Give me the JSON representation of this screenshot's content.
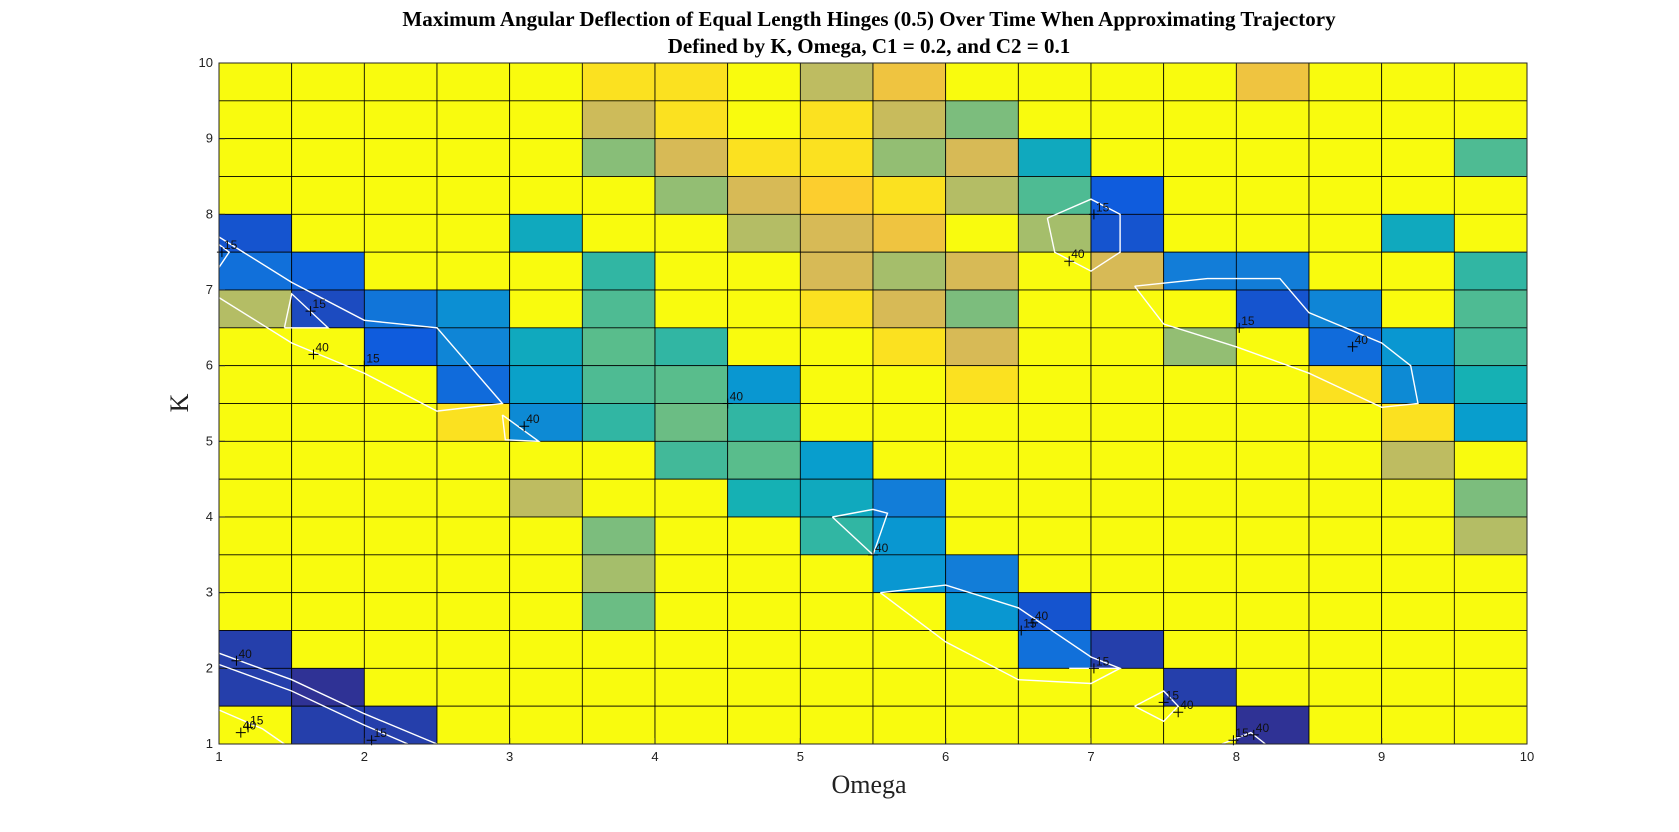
{
  "chart_data": {
    "type": "heatmap",
    "title": [
      "Maximum Angular Deflection of Equal Length Hinges (0.5) Over Time When Approximating Trajectory",
      "Defined by K, Omega, C1 = 0.2, and C2 = 0.1"
    ],
    "xlabel": "Omega",
    "ylabel": "K",
    "xlim": [
      1,
      10
    ],
    "ylim": [
      1,
      10
    ],
    "x_ticks": [
      "1",
      "2",
      "3",
      "4",
      "5",
      "6",
      "7",
      "8",
      "9",
      "10"
    ],
    "y_ticks": [
      "1",
      "2",
      "3",
      "4",
      "5",
      "6",
      "7",
      "8",
      "9",
      "10"
    ],
    "x_edges": [
      1,
      1.5,
      2,
      2.5,
      3,
      3.5,
      4,
      4.5,
      5,
      5.5,
      6,
      6.5,
      7,
      7.5,
      8,
      8.5,
      9,
      9.5,
      10
    ],
    "y_edges": [
      1,
      1.5,
      2,
      2.5,
      3,
      3.5,
      4,
      4.5,
      5,
      5.5,
      6,
      6.5,
      7,
      7.5,
      8,
      8.5,
      9,
      9.5,
      10
    ],
    "grid": true,
    "colormap": "parula",
    "color_scale": [
      0,
      100
    ],
    "values_rows_from_top": [
      [
        100,
        100,
        100,
        100,
        100,
        96,
        96,
        100,
        80,
        90,
        100,
        100,
        100,
        100,
        90,
        100,
        100,
        100
      ],
      [
        100,
        100,
        100,
        100,
        100,
        83,
        96,
        100,
        96,
        82,
        68,
        100,
        100,
        100,
        100,
        100,
        100,
        100
      ],
      [
        100,
        100,
        100,
        100,
        100,
        70,
        85,
        96,
        96,
        72,
        85,
        45,
        100,
        100,
        100,
        100,
        100,
        60
      ],
      [
        100,
        100,
        100,
        100,
        100,
        100,
        72,
        85,
        93,
        96,
        78,
        60,
        12,
        100,
        100,
        100,
        100,
        100
      ],
      [
        10,
        100,
        100,
        100,
        45,
        100,
        100,
        78,
        85,
        90,
        100,
        75,
        10,
        100,
        100,
        100,
        45,
        100
      ],
      [
        20,
        15,
        100,
        100,
        100,
        55,
        100,
        100,
        85,
        75,
        85,
        100,
        85,
        25,
        25,
        100,
        100,
        55
      ],
      [
        78,
        8,
        22,
        32,
        100,
        60,
        100,
        100,
        96,
        85,
        68,
        100,
        100,
        100,
        10,
        28,
        100,
        60
      ],
      [
        100,
        100,
        12,
        28,
        45,
        62,
        55,
        100,
        100,
        96,
        85,
        100,
        100,
        72,
        100,
        18,
        35,
        58
      ],
      [
        100,
        100,
        100,
        18,
        40,
        60,
        62,
        35,
        100,
        100,
        96,
        100,
        100,
        100,
        100,
        96,
        30,
        50
      ],
      [
        100,
        100,
        100,
        96,
        30,
        55,
        65,
        55,
        100,
        100,
        100,
        100,
        100,
        100,
        100,
        100,
        96,
        38
      ],
      [
        100,
        100,
        100,
        100,
        100,
        100,
        58,
        62,
        38,
        100,
        100,
        100,
        100,
        100,
        100,
        100,
        80,
        100
      ],
      [
        100,
        100,
        100,
        100,
        80,
        100,
        100,
        50,
        45,
        25,
        100,
        100,
        100,
        100,
        100,
        100,
        100,
        68
      ],
      [
        100,
        100,
        100,
        100,
        100,
        68,
        100,
        100,
        55,
        35,
        100,
        100,
        100,
        100,
        100,
        100,
        100,
        78
      ],
      [
        100,
        100,
        100,
        100,
        100,
        75,
        100,
        100,
        100,
        35,
        25,
        100,
        100,
        100,
        100,
        100,
        100,
        100
      ],
      [
        100,
        100,
        100,
        100,
        100,
        65,
        100,
        100,
        100,
        100,
        35,
        10,
        100,
        100,
        100,
        100,
        100,
        100
      ],
      [
        5,
        100,
        100,
        100,
        100,
        100,
        100,
        100,
        100,
        100,
        100,
        20,
        5,
        100,
        100,
        100,
        100,
        100
      ],
      [
        5,
        2,
        100,
        100,
        100,
        100,
        100,
        100,
        100,
        100,
        100,
        100,
        100,
        5,
        100,
        100,
        100,
        100
      ],
      [
        100,
        5,
        5,
        100,
        100,
        100,
        100,
        100,
        100,
        100,
        100,
        100,
        100,
        100,
        2,
        100,
        100,
        100
      ]
    ],
    "contour_levels": [
      "15",
      "40"
    ],
    "contour_labels": [
      {
        "text": "15",
        "x": 1.02,
        "y": 7.5
      },
      {
        "text": "15",
        "x": 1.63,
        "y": 6.72
      },
      {
        "text": "40",
        "x": 1.65,
        "y": 6.15
      },
      {
        "text": "15",
        "x": 2.0,
        "y": 6.0
      },
      {
        "text": "40",
        "x": 3.1,
        "y": 5.2
      },
      {
        "text": "40",
        "x": 4.5,
        "y": 5.5
      },
      {
        "text": "40",
        "x": 5.5,
        "y": 3.5
      },
      {
        "text": "40",
        "x": 6.85,
        "y": 7.38
      },
      {
        "text": "15",
        "x": 7.02,
        "y": 8.0
      },
      {
        "text": "15",
        "x": 8.02,
        "y": 6.5
      },
      {
        "text": "40",
        "x": 8.8,
        "y": 6.25
      },
      {
        "text": "15",
        "x": 6.52,
        "y": 2.5
      },
      {
        "text": "40",
        "x": 6.6,
        "y": 2.6
      },
      {
        "text": "15",
        "x": 7.02,
        "y": 2.0
      },
      {
        "text": "40",
        "x": 1.12,
        "y": 2.1
      },
      {
        "text": "40",
        "x": 1.15,
        "y": 1.15
      },
      {
        "text": "15",
        "x": 1.2,
        "y": 1.22
      },
      {
        "text": "15",
        "x": 2.05,
        "y": 1.05
      },
      {
        "text": "15",
        "x": 7.5,
        "y": 1.55
      },
      {
        "text": "40",
        "x": 7.6,
        "y": 1.42
      },
      {
        "text": "15",
        "x": 7.98,
        "y": 1.05
      },
      {
        "text": "40",
        "x": 8.12,
        "y": 1.12
      }
    ],
    "contour_lines": [
      [
        [
          1.0,
          7.7
        ],
        [
          1.5,
          7.1
        ],
        [
          2.0,
          6.6
        ],
        [
          2.5,
          6.5
        ],
        [
          2.95,
          5.5
        ],
        [
          2.5,
          5.4
        ],
        [
          2.0,
          5.9
        ],
        [
          1.5,
          6.3
        ],
        [
          1.0,
          6.9
        ]
      ],
      [
        [
          1.0,
          7.3
        ],
        [
          1.07,
          7.5
        ],
        [
          1.0,
          7.6
        ]
      ],
      [
        [
          1.45,
          6.5
        ],
        [
          1.5,
          6.95
        ],
        [
          1.75,
          6.5
        ],
        [
          1.45,
          6.5
        ]
      ],
      [
        [
          2.95,
          5.35
        ],
        [
          3.2,
          5.0
        ],
        [
          2.97,
          5.02
        ],
        [
          2.95,
          5.35
        ]
      ],
      [
        [
          5.22,
          4.0
        ],
        [
          5.5,
          4.1
        ],
        [
          5.6,
          4.05
        ],
        [
          5.5,
          3.5
        ],
        [
          5.22,
          4.0
        ]
      ],
      [
        [
          6.7,
          7.95
        ],
        [
          7.0,
          8.2
        ],
        [
          7.2,
          8.0
        ],
        [
          7.2,
          7.5
        ],
        [
          7.0,
          7.25
        ],
        [
          6.75,
          7.5
        ],
        [
          6.7,
          7.95
        ]
      ],
      [
        [
          7.3,
          7.05
        ],
        [
          7.8,
          7.15
        ],
        [
          8.3,
          7.15
        ],
        [
          8.5,
          6.7
        ],
        [
          9.0,
          6.3
        ],
        [
          9.2,
          6.0
        ],
        [
          9.25,
          5.5
        ],
        [
          9.0,
          5.45
        ],
        [
          8.5,
          5.9
        ],
        [
          8.0,
          6.25
        ],
        [
          7.5,
          6.55
        ],
        [
          7.3,
          7.05
        ]
      ],
      [
        [
          5.55,
          3.0
        ],
        [
          6.0,
          3.1
        ],
        [
          6.5,
          2.8
        ],
        [
          7.0,
          2.15
        ],
        [
          7.2,
          2.0
        ],
        [
          7.0,
          1.8
        ],
        [
          6.5,
          1.85
        ],
        [
          6.0,
          2.35
        ],
        [
          5.55,
          3.0
        ]
      ],
      [
        [
          6.85,
          2.0
        ],
        [
          7.2,
          2.0
        ]
      ],
      [
        [
          1.0,
          2.2
        ],
        [
          1.5,
          1.85
        ],
        [
          2.0,
          1.4
        ],
        [
          2.5,
          1.0
        ]
      ],
      [
        [
          1.0,
          2.05
        ],
        [
          1.5,
          1.7
        ],
        [
          2.0,
          1.25
        ],
        [
          2.3,
          1.0
        ]
      ],
      [
        [
          1.0,
          1.45
        ],
        [
          1.3,
          1.2
        ],
        [
          1.45,
          1.0
        ]
      ],
      [
        [
          7.3,
          1.5
        ],
        [
          7.5,
          1.7
        ],
        [
          7.6,
          1.5
        ],
        [
          7.5,
          1.3
        ],
        [
          7.3,
          1.5
        ]
      ],
      [
        [
          7.9,
          1.0
        ],
        [
          8.1,
          1.15
        ],
        [
          8.2,
          1.0
        ]
      ]
    ]
  }
}
